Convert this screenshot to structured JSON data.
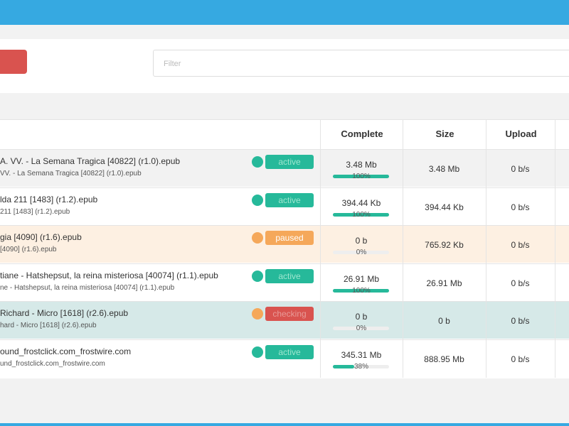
{
  "filter": {
    "placeholder": "Filter"
  },
  "table": {
    "headers": [
      "Complete",
      "Size",
      "Upload"
    ],
    "rows": [
      {
        "name": "A. VV. - La Semana Tragica [40822] (r1.0).epub",
        "subname": "VV. - La Semana Tragica [40822] (r1.0).epub",
        "status": "active",
        "complete": "3.48 Mb",
        "progress": 100,
        "progress_label": "100%",
        "size": "3.48 Mb",
        "upload": "0 b/s"
      },
      {
        "name": "lda 211 [1483] (r1.2).epub",
        "subname": "211 [1483] (r1.2).epub",
        "status": "active",
        "complete": "394.44 Kb",
        "progress": 100,
        "progress_label": "100%",
        "size": "394.44 Kb",
        "upload": "0 b/s"
      },
      {
        "name": "gia [4090] (r1.6).epub",
        "subname": "[4090] (r1.6).epub",
        "status": "paused",
        "complete": "0 b",
        "progress": 0,
        "progress_label": "0%",
        "size": "765.92 Kb",
        "upload": "0 b/s"
      },
      {
        "name": "tiane - Hatshepsut, la reina misteriosa [40074] (r1.1).epub",
        "subname": "ne - Hatshepsut, la reina misteriosa [40074] (r1.1).epub",
        "status": "active",
        "complete": "26.91 Mb",
        "progress": 100,
        "progress_label": "100%",
        "size": "26.91 Mb",
        "upload": "0 b/s"
      },
      {
        "name": "Richard - Micro [1618] (r2.6).epub",
        "subname": "hard - Micro [1618] (r2.6).epub",
        "status": "checking",
        "complete": "0 b",
        "progress": 0,
        "progress_label": "0%",
        "size": "0 b",
        "upload": "0 b/s"
      },
      {
        "name": "ound_frostclick.com_frostwire.com",
        "subname": "und_frostclick.com_frostwire.com",
        "status": "active",
        "complete": "345.31 Mb",
        "progress": 38,
        "progress_label": "38%",
        "size": "888.95 Mb",
        "upload": "0 b/s"
      }
    ]
  }
}
